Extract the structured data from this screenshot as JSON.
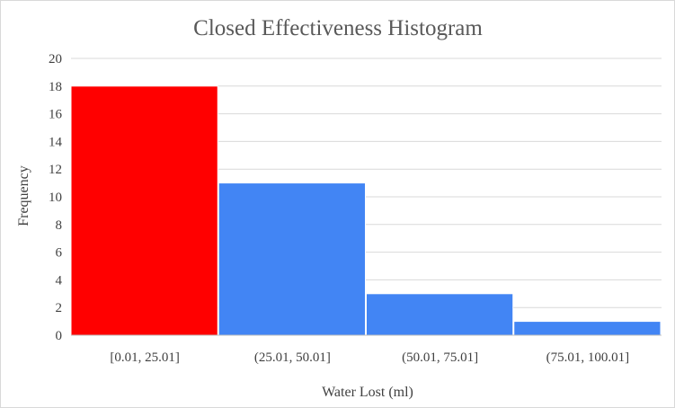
{
  "chart_data": {
    "type": "bar",
    "title": "Closed Effectiveness Histogram",
    "xlabel": "Water Lost (ml)",
    "ylabel": "Frequency",
    "categories": [
      "[0.01, 25.01]",
      "(25.01, 50.01]",
      "(50.01, 75.01]",
      "(75.01, 100.01]"
    ],
    "values": [
      18,
      11,
      3,
      1
    ],
    "ylim": [
      0,
      20
    ],
    "yticks": [
      0,
      2,
      4,
      6,
      8,
      10,
      12,
      14,
      16,
      18,
      20
    ],
    "bar_colors": [
      "#ff0000",
      "#4285f4",
      "#4285f4",
      "#4285f4"
    ],
    "grid": true,
    "legend": "none"
  }
}
